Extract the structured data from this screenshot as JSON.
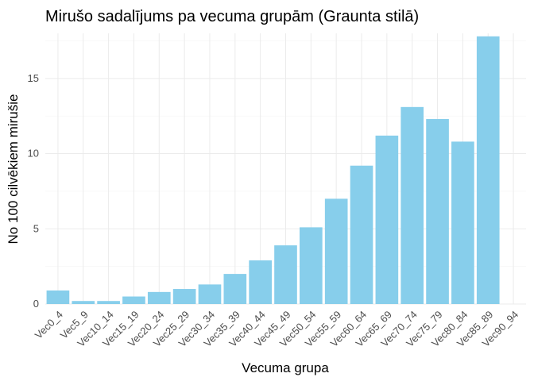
{
  "chart_data": {
    "type": "bar",
    "title": "Mirušo sadalījums pa vecuma grupām (Graunta stilā)",
    "xlabel": "Vecuma grupa",
    "ylabel": "No 100 cilvēkiem mirušie",
    "categories": [
      "Vec0_4",
      "Vec5_9",
      "Vec10_14",
      "Vec15_19",
      "Vec20_24",
      "Vec25_29",
      "Vec30_34",
      "Vec35_39",
      "Vec40_44",
      "Vec45_49",
      "Vec50_54",
      "Vec55_59",
      "Vec60_64",
      "Vec65_69",
      "Vec70_74",
      "Vec75_79",
      "Vec80_84",
      "Vec85_89",
      "Vec90_94"
    ],
    "values": [
      0.9,
      0.2,
      0.2,
      0.5,
      0.8,
      1.0,
      1.3,
      2.0,
      2.9,
      3.9,
      5.1,
      7.0,
      9.2,
      11.2,
      13.1,
      12.3,
      10.8,
      17.8,
      0.0
    ],
    "ylim": [
      0,
      18
    ],
    "yticks": [
      0,
      5,
      10,
      15
    ],
    "bar_color": "#87ceeb",
    "grid": true
  }
}
